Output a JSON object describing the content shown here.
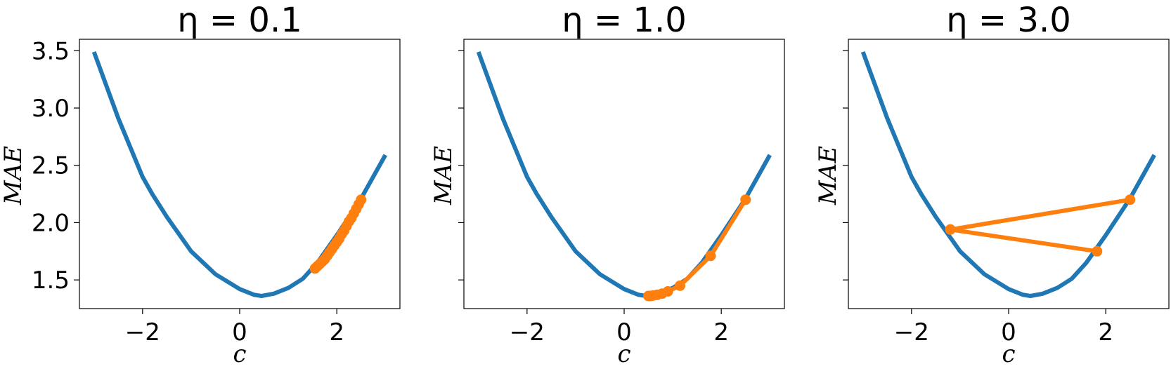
{
  "chart_data": [
    {
      "type": "line",
      "title": "η = 0.1",
      "xlabel": "c",
      "ylabel": "MAE",
      "xlim": [
        -3.3,
        3.3
      ],
      "ylim": [
        1.25,
        3.6
      ],
      "x_ticks": [
        -2,
        0,
        2
      ],
      "x_tick_labels": [
        "−2",
        "0",
        "2"
      ],
      "y_ticks": [
        1.5,
        2.0,
        2.5,
        3.0,
        3.5
      ],
      "y_tick_labels": [
        "1.5",
        "2.0",
        "2.5",
        "3.0",
        "3.5"
      ],
      "show_y_tick_labels": true,
      "grid": false,
      "series": [
        {
          "kind": "curve",
          "color": "#1f77b4",
          "x": [
            -3.0,
            -2.5,
            -2.0,
            -1.8,
            -1.5,
            -1.0,
            -0.5,
            0.0,
            0.3,
            0.45,
            0.7,
            1.0,
            1.3,
            1.6,
            2.0,
            2.5,
            3.0
          ],
          "y": [
            3.49,
            2.91,
            2.4,
            2.25,
            2.05,
            1.75,
            1.55,
            1.42,
            1.37,
            1.36,
            1.38,
            1.43,
            1.51,
            1.65,
            1.89,
            2.21,
            2.59
          ]
        },
        {
          "kind": "descent",
          "color": "#ff7f0e",
          "x": [
            2.5,
            2.45,
            2.4,
            2.35,
            2.3,
            2.25,
            2.2,
            2.15,
            2.1,
            2.05,
            2.0,
            1.95,
            1.9,
            1.85,
            1.8,
            1.75,
            1.7,
            1.65,
            1.6,
            1.55
          ],
          "y": [
            2.2,
            2.16,
            2.12,
            2.08,
            2.04,
            2.01,
            1.97,
            1.93,
            1.9,
            1.86,
            1.83,
            1.8,
            1.77,
            1.74,
            1.71,
            1.68,
            1.66,
            1.64,
            1.62,
            1.6
          ]
        }
      ]
    },
    {
      "type": "line",
      "title": "η = 1.0",
      "xlabel": "c",
      "ylabel": "MAE",
      "xlim": [
        -3.3,
        3.3
      ],
      "ylim": [
        1.25,
        3.6
      ],
      "x_ticks": [
        -2,
        0,
        2
      ],
      "x_tick_labels": [
        "−2",
        "0",
        "2"
      ],
      "y_ticks": [
        1.5,
        2.0,
        2.5,
        3.0,
        3.5
      ],
      "y_tick_labels": [
        "1.5",
        "2.0",
        "2.5",
        "3.0",
        "3.5"
      ],
      "show_y_tick_labels": false,
      "grid": false,
      "series": [
        {
          "kind": "curve",
          "color": "#1f77b4",
          "x": [
            -3.0,
            -2.5,
            -2.0,
            -1.8,
            -1.5,
            -1.0,
            -0.5,
            0.0,
            0.3,
            0.45,
            0.7,
            1.0,
            1.3,
            1.6,
            2.0,
            2.5,
            3.0
          ],
          "y": [
            3.49,
            2.91,
            2.4,
            2.25,
            2.05,
            1.75,
            1.55,
            1.42,
            1.37,
            1.36,
            1.38,
            1.43,
            1.51,
            1.65,
            1.89,
            2.21,
            2.59
          ]
        },
        {
          "kind": "descent",
          "color": "#ff7f0e",
          "x": [
            2.5,
            1.78,
            1.15,
            0.9,
            0.78,
            0.68,
            0.6,
            0.55,
            0.5
          ],
          "y": [
            2.2,
            1.71,
            1.45,
            1.4,
            1.38,
            1.37,
            1.365,
            1.36,
            1.36
          ]
        }
      ]
    },
    {
      "type": "line",
      "title": "η = 3.0",
      "xlabel": "c",
      "ylabel": "MAE",
      "xlim": [
        -3.3,
        3.3
      ],
      "ylim": [
        1.25,
        3.6
      ],
      "x_ticks": [
        -2,
        0,
        2
      ],
      "x_tick_labels": [
        "−2",
        "0",
        "2"
      ],
      "y_ticks": [
        1.5,
        2.0,
        2.5,
        3.0,
        3.5
      ],
      "y_tick_labels": [
        "1.5",
        "2.0",
        "2.5",
        "3.0",
        "3.5"
      ],
      "show_y_tick_labels": false,
      "grid": false,
      "series": [
        {
          "kind": "curve",
          "color": "#1f77b4",
          "x": [
            -3.0,
            -2.5,
            -2.0,
            -1.8,
            -1.5,
            -1.0,
            -0.5,
            0.0,
            0.3,
            0.45,
            0.7,
            1.0,
            1.3,
            1.6,
            2.0,
            2.5,
            3.0
          ],
          "y": [
            3.49,
            2.91,
            2.4,
            2.25,
            2.05,
            1.75,
            1.55,
            1.42,
            1.37,
            1.36,
            1.38,
            1.43,
            1.51,
            1.65,
            1.89,
            2.21,
            2.59
          ]
        },
        {
          "kind": "descent",
          "color": "#ff7f0e",
          "x": [
            2.5,
            -1.2,
            1.82,
            -1.2
          ],
          "y": [
            2.2,
            1.94,
            1.75,
            1.94
          ]
        }
      ]
    }
  ]
}
